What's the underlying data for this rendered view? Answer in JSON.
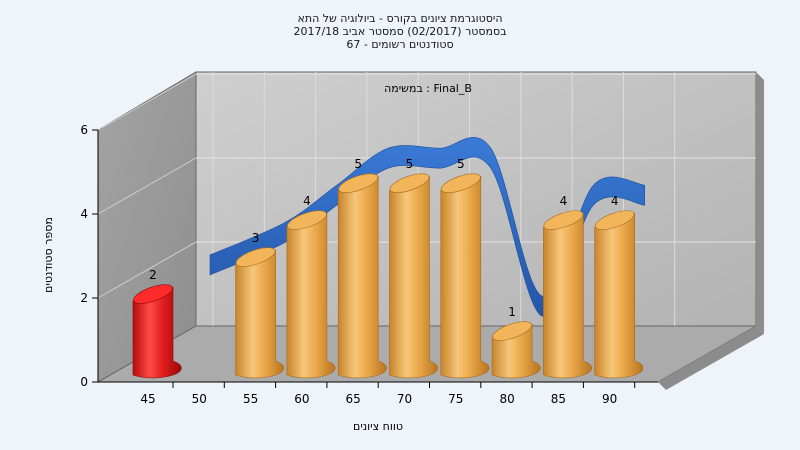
{
  "chart_data": {
    "type": "bar",
    "title_lines": [
      "היסטוגרמת ציונים בקורס - ביולוגיה של התא",
      "בסמסטר  (02/2017)  סמסטר אביב 2017/18",
      "סטודנטים רשומים - 67"
    ],
    "annotation": "במשימה : Final_B",
    "xlabel": "טווח ציונים",
    "ylabel": "מספר סטודנטים",
    "x_ticks": [
      "45",
      "50",
      "55",
      "60",
      "65",
      "70",
      "75",
      "80",
      "85",
      "90"
    ],
    "y_ticks": [
      "0",
      "2",
      "4",
      "6"
    ],
    "ylim": [
      0,
      6
    ],
    "bars": [
      {
        "x": "45",
        "value": 2,
        "color": "red"
      },
      {
        "x": "55",
        "value": 3,
        "color": "orange"
      },
      {
        "x": "60",
        "value": 4,
        "color": "orange"
      },
      {
        "x": "65",
        "value": 5,
        "color": "orange"
      },
      {
        "x": "70",
        "value": 5,
        "color": "orange"
      },
      {
        "x": "75",
        "value": 5,
        "color": "orange"
      },
      {
        "x": "80",
        "value": 1,
        "color": "orange"
      },
      {
        "x": "85",
        "value": 4,
        "color": "orange"
      },
      {
        "x": "90",
        "value": 4,
        "color": "orange"
      }
    ],
    "trend_series": {
      "x": [
        "55",
        "60",
        "65",
        "70",
        "75",
        "80",
        "85",
        "90"
      ],
      "values": [
        3,
        4,
        5,
        5,
        5,
        1,
        4,
        4
      ]
    },
    "grid": true,
    "three_d": true
  },
  "colors": {
    "background": "#eef4fa",
    "wall": "#9a9a9a",
    "wall_right": "#b9b9b9",
    "floor": "#a9a9a9",
    "bar_orange": "#e8a84a",
    "bar_red": "#e0191b",
    "trend": "#2f6cc2"
  }
}
